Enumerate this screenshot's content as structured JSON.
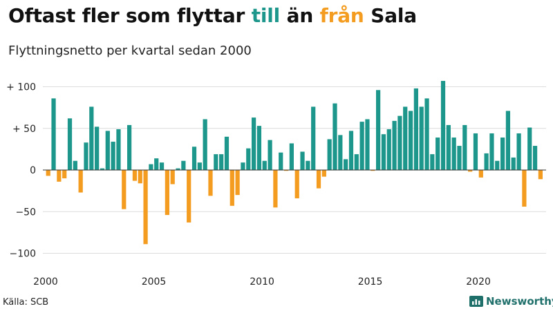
{
  "title": {
    "w1": "Oftast fler som flyttar",
    "w2": "till",
    "w3": "än",
    "w4": "från",
    "w5": "Sala"
  },
  "subtitle": "Flyttningsnetto per kvartal sedan 2000",
  "source": "Källa: SCB",
  "brand": "Newsworthy",
  "colors": {
    "positive": "#1d978b",
    "negative": "#f39c1f",
    "grid": "#dcdcdc",
    "brand": "#1f6f6b"
  },
  "chart_data": {
    "type": "bar",
    "title": "Oftast fler som flyttar till än från Sala",
    "subtitle": "Flyttningsnetto per kvartal sedan 2000",
    "ylim": [
      -110,
      110
    ],
    "yticks": [
      100,
      50,
      0,
      -50,
      -100
    ],
    "ytick_labels": [
      "+ 100",
      "+ 50",
      "0",
      "−50",
      "−100"
    ],
    "xticks": [
      2000,
      2005,
      2010,
      2015,
      2020
    ],
    "xtick_labels": [
      "2000",
      "2005",
      "2010",
      "2015",
      "2020"
    ],
    "grid": true,
    "start_year": 2000,
    "values": [
      -7,
      86,
      -14,
      -10,
      62,
      11,
      -27,
      33,
      76,
      52,
      2,
      47,
      34,
      49,
      -47,
      54,
      -13,
      -16,
      -89,
      7,
      14,
      9,
      -54,
      -17,
      2,
      11,
      -63,
      28,
      9,
      61,
      -31,
      19,
      19,
      40,
      -43,
      -30,
      9,
      26,
      63,
      53,
      11,
      36,
      -45,
      21,
      -1,
      32,
      -34,
      22,
      11,
      76,
      -22,
      -8,
      37,
      80,
      42,
      13,
      47,
      19,
      58,
      61,
      -1,
      96,
      43,
      49,
      59,
      65,
      76,
      71,
      98,
      76,
      86,
      19,
      39,
      107,
      54,
      39,
      29,
      54,
      -2,
      44,
      -9,
      20,
      44,
      11,
      39,
      71,
      15,
      44,
      -44,
      51,
      29,
      -11
    ]
  }
}
